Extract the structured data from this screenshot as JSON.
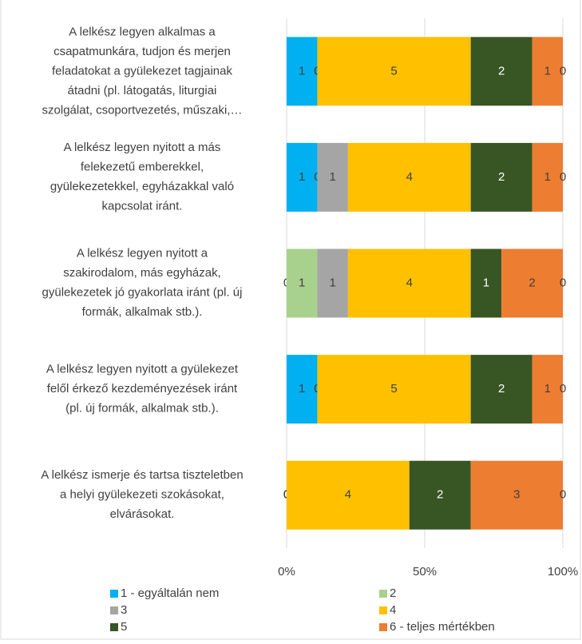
{
  "chart_data": {
    "type": "bar",
    "orientation": "horizontal",
    "stack": "percent",
    "categories": [
      [
        "A lelkész legyen alkalmas a",
        "csapatmunkára, tudjon és merjen",
        "feladatokat a gyülekezet tagjainak",
        "átadni (pl. látogatás, liturgiai",
        "szolgálat, csoportvezetés, műszaki,…"
      ],
      [
        "A lelkész legyen nyitott a más",
        "felekezetű emberekkel,",
        "gyülekezetekkel, egyházakkal való",
        "kapcsolat iránt."
      ],
      [
        "A lelkész legyen nyitott a",
        "szakirodalom, más egyházak,",
        "gyülekezetek jó gyakorlata iránt (pl. új",
        "formák, alkalmak stb.)."
      ],
      [
        "A lelkész legyen nyitott a gyülekezet",
        "felől érkező kezdeményezések iránt",
        "(pl. új formák, alkalmak stb.)."
      ],
      [
        "A lelkész ismerje és tartsa tiszteletben",
        "a helyi gyülekezeti szokásokat,",
        "elvárásokat."
      ]
    ],
    "series": [
      {
        "name": "1 - egyáltalán nem",
        "color": "#00b0f0",
        "label_color": "#404040",
        "values": [
          1,
          1,
          0,
          1,
          0
        ]
      },
      {
        "name": "2",
        "color": "#a9d18e",
        "label_color": "#404040",
        "values": [
          0,
          0,
          1,
          0,
          0
        ]
      },
      {
        "name": "3",
        "color": "#a5a5a5",
        "label_color": "#404040",
        "values": [
          0,
          1,
          1,
          0,
          0
        ]
      },
      {
        "name": "4",
        "color": "#ffc000",
        "label_color": "#404040",
        "values": [
          5,
          4,
          4,
          5,
          4
        ]
      },
      {
        "name": "5",
        "color": "#375623",
        "label_color": "#ffffff",
        "values": [
          2,
          2,
          1,
          2,
          2
        ]
      },
      {
        "name": "6 - teljes mértékben",
        "color": "#ed7d31",
        "label_color": "#404040",
        "values": [
          1,
          1,
          2,
          1,
          3
        ]
      },
      {
        "label_color": "#404040",
        "values": [
          0,
          0,
          0,
          0,
          0
        ]
      }
    ],
    "xlim": [
      0,
      100
    ],
    "xticks": [
      {
        "value": 0,
        "label": "0%"
      },
      {
        "value": 50,
        "label": "50%"
      },
      {
        "value": 100,
        "label": "100%"
      }
    ],
    "grid": true,
    "legend": "bottom"
  }
}
